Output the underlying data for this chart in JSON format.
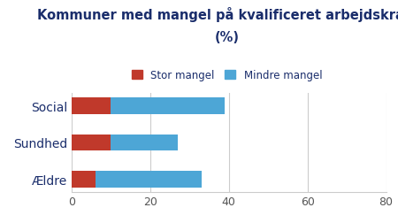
{
  "categories": [
    "Social",
    "Sundhed",
    "Ældre"
  ],
  "stor_mangel": [
    10,
    10,
    6
  ],
  "mindre_mangel": [
    29,
    17,
    27
  ],
  "color_stor": "#c0392b",
  "color_mindre": "#4da6d6",
  "title_line1": "Kommuner med mangel på kvalificeret arbejdskraft",
  "title_line2": "(%)",
  "legend_stor": "Stor mangel",
  "legend_mindre": "Mindre mangel",
  "xlim": [
    0,
    80
  ],
  "xticks": [
    0,
    20,
    40,
    60,
    80
  ],
  "background_color": "#ffffff",
  "title_color": "#1a2d6b",
  "label_color": "#1a2d6b",
  "bar_height": 0.45,
  "title_fontsize": 10.5,
  "legend_fontsize": 8.5,
  "ytick_fontsize": 10,
  "xtick_fontsize": 9
}
